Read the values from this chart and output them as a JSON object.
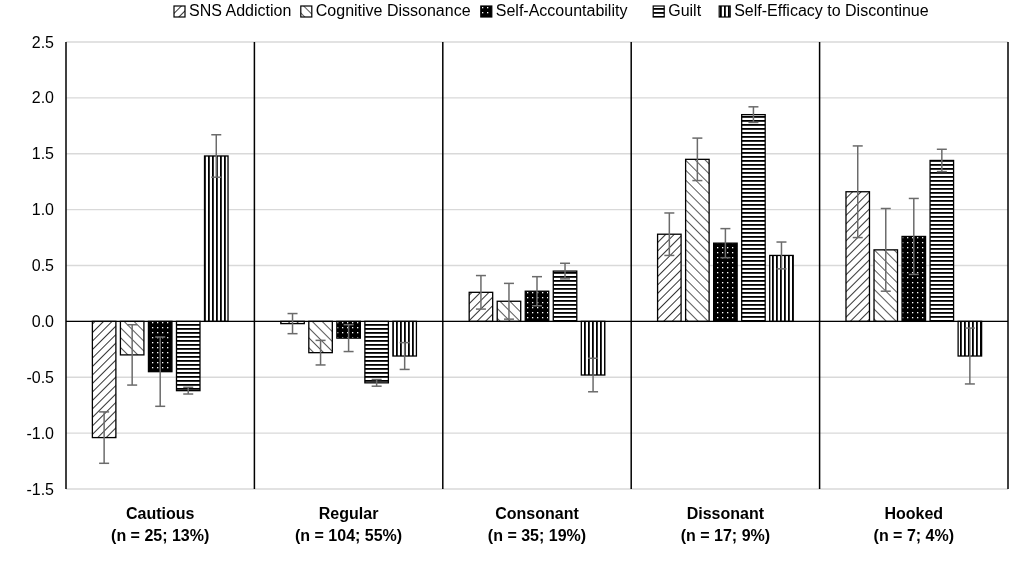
{
  "chart_data": {
    "type": "bar",
    "categories": [
      "Cautious\n(n = 25; 13%)",
      "Regular\n(n = 104; 55%)",
      "Consonant\n(n = 35; 19%)",
      "Dissonant\n(n = 17; 9%)",
      "Hooked\n(n = 7; 4%)"
    ],
    "series": [
      {
        "name": "SNS Addiction",
        "color": "#000000",
        "values": [
          -1.04,
          -0.02,
          0.26,
          0.78,
          1.16
        ],
        "errors": [
          0.23,
          0.09,
          0.15,
          0.19,
          0.41
        ]
      },
      {
        "name": "Cognitive Dissonance",
        "color": "#000000",
        "values": [
          -0.3,
          -0.28,
          0.18,
          1.45,
          0.64
        ],
        "errors": [
          0.27,
          0.11,
          0.16,
          0.19,
          0.37
        ]
      },
      {
        "name": "Self-Accountability",
        "color": "#000000",
        "values": [
          -0.45,
          -0.15,
          0.27,
          0.7,
          0.76
        ],
        "errors": [
          0.31,
          0.12,
          0.13,
          0.13,
          0.34
        ]
      },
      {
        "name": "Guilt",
        "color": "#000000",
        "values": [
          -0.62,
          -0.55,
          0.45,
          1.85,
          1.44
        ],
        "errors": [
          0.03,
          0.03,
          0.07,
          0.07,
          0.1
        ]
      },
      {
        "name": "Self-Efficacy to Discontinue",
        "color": "#000000",
        "values": [
          1.48,
          -0.31,
          -0.48,
          0.59,
          -0.31
        ],
        "errors": [
          0.19,
          0.12,
          0.15,
          0.12,
          0.25
        ]
      }
    ],
    "ylim": [
      -1.5,
      2.5
    ],
    "yticks": [
      {
        "value": -1.5,
        "label": "-1.5"
      },
      {
        "value": -1,
        "label": "-1.0"
      },
      {
        "value": -0.5,
        "label": "-0.5"
      },
      {
        "value": 0,
        "label": "0.0"
      },
      {
        "value": 0.5,
        "label": "0.5"
      },
      {
        "value": 1,
        "label": "1.0"
      },
      {
        "value": 1.5,
        "label": "1.5"
      },
      {
        "value": 2,
        "label": "2.0"
      },
      {
        "value": 2.5,
        "label": "2.5"
      }
    ],
    "grid": "y",
    "legend": "top"
  }
}
